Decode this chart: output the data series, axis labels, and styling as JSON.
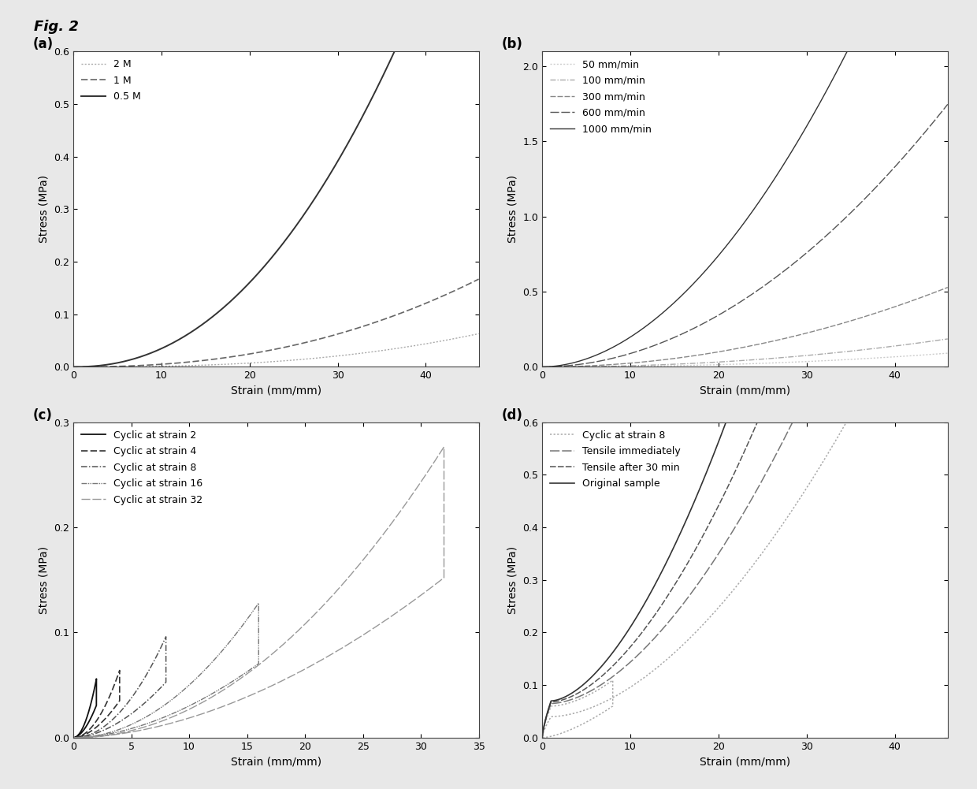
{
  "fig_label": "Fig. 2",
  "background_color": "#e8e8e8",
  "panel_bg": "#ffffff",
  "a": {
    "label": "(a)",
    "xlabel": "Strain (mm/mm)",
    "ylabel": "Stress (MPa)",
    "xlim": [
      0,
      46
    ],
    "ylim": [
      0,
      0.6
    ],
    "yticks": [
      0.0,
      0.1,
      0.2,
      0.3,
      0.4,
      0.5,
      0.6
    ],
    "xticks": [
      0,
      10,
      20,
      30,
      40
    ],
    "series": [
      {
        "label": "2 M",
        "color": "#aaaaaa",
        "lw": 1.0,
        "k": 3e-06,
        "exp": 2.6
      },
      {
        "label": "1 M",
        "color": "#666666",
        "lw": 1.2,
        "k": 2.5e-05,
        "exp": 2.3
      },
      {
        "label": "0.5 M",
        "color": "#333333",
        "lw": 1.4,
        "k": 0.00022,
        "exp": 2.2
      }
    ]
  },
  "b": {
    "label": "(b)",
    "xlabel": "Strain (mm/mm)",
    "ylabel": "Stress (MPa)",
    "xlim": [
      0,
      46
    ],
    "ylim": [
      0,
      2.1
    ],
    "yticks": [
      0.0,
      0.5,
      1.0,
      1.5,
      2.0
    ],
    "xticks": [
      0,
      10,
      20,
      30,
      40
    ],
    "series": [
      {
        "label": "50 mm/min",
        "color": "#cccccc",
        "lw": 1.0,
        "k": 2e-05,
        "exp": 2.2
      },
      {
        "label": "100 mm/min",
        "color": "#aaaaaa",
        "lw": 1.0,
        "k": 6e-05,
        "exp": 2.1
      },
      {
        "label": "300 mm/min",
        "color": "#888888",
        "lw": 1.0,
        "k": 0.00025,
        "exp": 2.0
      },
      {
        "label": "600 mm/min",
        "color": "#555555",
        "lw": 1.0,
        "k": 0.001,
        "exp": 1.95
      },
      {
        "label": "1000 mm/min",
        "color": "#333333",
        "lw": 1.0,
        "k": 0.0025,
        "exp": 1.9
      }
    ]
  },
  "c": {
    "label": "(c)",
    "xlabel": "Strain (mm/mm)",
    "ylabel": "Stress (MPa)",
    "xlim": [
      0,
      35
    ],
    "ylim": [
      0,
      0.3
    ],
    "yticks": [
      0.0,
      0.1,
      0.2,
      0.3
    ],
    "xticks": [
      0,
      5,
      10,
      15,
      20,
      25,
      30,
      35
    ],
    "cycles": [
      {
        "label": "Cyclic at strain 2",
        "max_strain": 2,
        "color": "#111111",
        "lw": 1.3,
        "k": 0.014,
        "exp": 2.0
      },
      {
        "label": "Cyclic at strain 4",
        "max_strain": 4,
        "color": "#333333",
        "lw": 1.2,
        "k": 0.004,
        "exp": 2.0
      },
      {
        "label": "Cyclic at strain 8",
        "max_strain": 8,
        "color": "#555555",
        "lw": 1.1,
        "k": 0.0015,
        "exp": 2.0
      },
      {
        "label": "Cyclic at strain 16",
        "max_strain": 16,
        "color": "#777777",
        "lw": 1.0,
        "k": 0.0005,
        "exp": 2.0
      },
      {
        "label": "Cyclic at strain 32",
        "max_strain": 32,
        "color": "#999999",
        "lw": 1.0,
        "k": 0.00027,
        "exp": 2.0
      }
    ]
  },
  "d": {
    "label": "(d)",
    "xlabel": "Strain (mm/mm)",
    "ylabel": "Stress (MPa)",
    "xlim": [
      0,
      46
    ],
    "ylim": [
      0,
      0.6
    ],
    "yticks": [
      0.0,
      0.1,
      0.2,
      0.3,
      0.4,
      0.5,
      0.6
    ],
    "xticks": [
      0,
      10,
      20,
      30,
      40
    ],
    "series": [
      {
        "label": "Cyclic at strain 8",
        "color": "#aaaaaa",
        "lw": 1.1
      },
      {
        "label": "Tensile immediately",
        "color": "#777777",
        "lw": 1.1
      },
      {
        "label": "Tensile after 30 min",
        "color": "#555555",
        "lw": 1.1
      },
      {
        "label": "Original sample",
        "color": "#333333",
        "lw": 1.2
      }
    ]
  }
}
